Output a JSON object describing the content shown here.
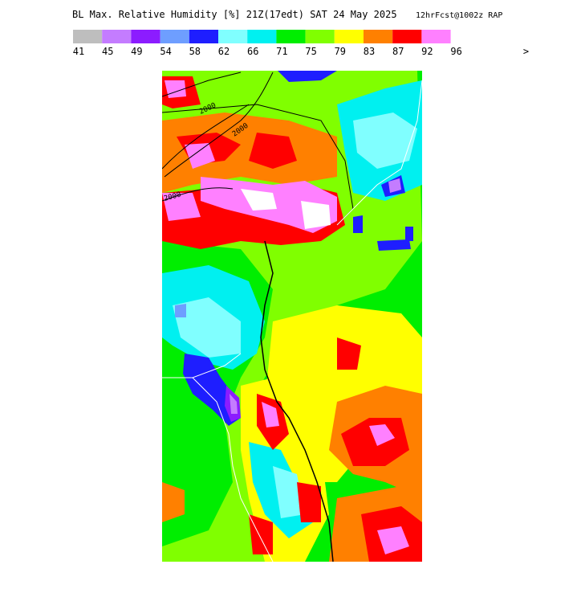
{
  "header": {
    "title": "BL Max. Relative Humidity [%] 21Z(17edt) SAT 24 May 2025",
    "subtitle": "12hrFcst@1002z RAP"
  },
  "legend": {
    "labels": [
      41,
      45,
      49,
      54,
      58,
      62,
      66,
      71,
      75,
      79,
      83,
      87,
      92,
      96,
      ">"
    ],
    "colors": [
      "#bebebe",
      "#c47cff",
      "#8c1cff",
      "#6e9eff",
      "#1e1eff",
      "#80ffff",
      "#00f0f0",
      "#00ee00",
      "#80ff00",
      "#ffff00",
      "#ff8000",
      "#ff0000",
      "#ff80ff"
    ]
  },
  "map": {
    "contour_labels": [
      "2000",
      "2000",
      "2000"
    ]
  }
}
